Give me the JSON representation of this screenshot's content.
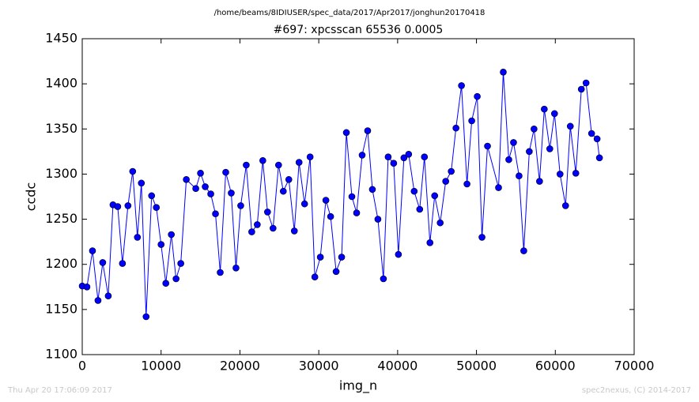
{
  "chart_data": {
    "type": "line",
    "suptitle": "/home/beams/8IDIUSER/spec_data/2017/Apr2017/jonghun20170418",
    "title": "#697: xpcsscan 65536 0.0005",
    "xlabel": "img_n",
    "ylabel": "ccdc",
    "footer_left": "Thu Apr 20 17:06:09 2017",
    "footer_right": "spec2nexus, (C) 2014-2017",
    "color": "#0000ff",
    "marker": true,
    "x": [
      0,
      600,
      1300,
      2000,
      2600,
      3300,
      3900,
      4500,
      5100,
      5800,
      6400,
      7000,
      7500,
      8100,
      8800,
      9400,
      10000,
      10600,
      11300,
      11900,
      12500,
      13200,
      14400,
      15000,
      15600,
      16300,
      16900,
      17500,
      18200,
      18900,
      19500,
      20100,
      20800,
      21500,
      22200,
      22900,
      23500,
      24200,
      24900,
      25500,
      26200,
      26900,
      27500,
      28200,
      28900,
      29500,
      30200,
      30900,
      31500,
      32200,
      32900,
      33500,
      34200,
      34800,
      35500,
      36200,
      36800,
      37500,
      38200,
      38800,
      39500,
      40100,
      40800,
      41400,
      42100,
      42800,
      43400,
      44100,
      44700,
      45400,
      46100,
      46800,
      47400,
      48100,
      48800,
      49400,
      50100,
      50700,
      51400,
      52800,
      53400,
      54100,
      54700,
      55400,
      56000,
      56700,
      57300,
      58000,
      58600,
      59300,
      59900,
      60600,
      61300,
      61900,
      62600,
      63300,
      63900,
      64600,
      65300,
      65600
    ],
    "values": [
      1176,
      1175,
      1215,
      1160,
      1202,
      1165,
      1266,
      1264,
      1201,
      1265,
      1303,
      1230,
      1290,
      1142,
      1276,
      1263,
      1222,
      1179,
      1233,
      1184,
      1201,
      1294,
      1284,
      1301,
      1286,
      1278,
      1256,
      1191,
      1302,
      1279,
      1196,
      1265,
      1310,
      1236,
      1244,
      1315,
      1258,
      1240,
      1310,
      1281,
      1294,
      1237,
      1313,
      1267,
      1319,
      1186,
      1208,
      1271,
      1253,
      1192,
      1208,
      1346,
      1275,
      1257,
      1321,
      1348,
      1283,
      1250,
      1184,
      1319,
      1312,
      1211,
      1318,
      1322,
      1281,
      1261,
      1319,
      1224,
      1276,
      1246,
      1292,
      1303,
      1351,
      1398,
      1289,
      1359,
      1386,
      1230,
      1331,
      1285,
      1413,
      1316,
      1335,
      1298,
      1215,
      1325,
      1350,
      1292,
      1372,
      1328,
      1367,
      1300,
      1265,
      1353,
      1301,
      1394,
      1401,
      1345,
      1339,
      1318
    ],
    "xlim": [
      0,
      70000
    ],
    "xticks": [
      0,
      10000,
      20000,
      30000,
      40000,
      50000,
      60000,
      70000
    ],
    "ylim": [
      1100,
      1450
    ],
    "yticks": [
      1100,
      1150,
      1200,
      1250,
      1300,
      1350,
      1400,
      1450
    ]
  }
}
